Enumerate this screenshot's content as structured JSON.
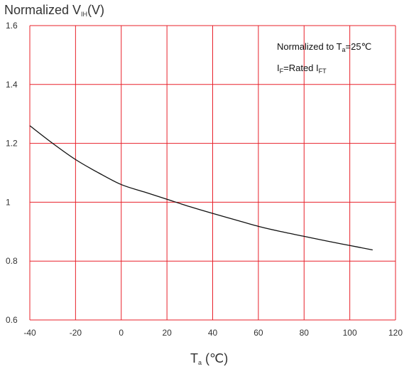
{
  "chart_data": {
    "type": "line",
    "title": "",
    "ylabel": {
      "main": "Normalized V",
      "sub": "IH",
      "suffix": "(V)"
    },
    "xlabel": {
      "main": "T",
      "sub": "a",
      "suffix": " (℃)"
    },
    "xlim": [
      -40,
      120
    ],
    "ylim": [
      0.6,
      1.6
    ],
    "xticks": [
      -40,
      -20,
      0,
      20,
      40,
      60,
      80,
      100,
      120
    ],
    "yticks": [
      0.6,
      0.8,
      1,
      1.2,
      1.4,
      1.6
    ],
    "xtick_labels": [
      "-40",
      "-20",
      "0",
      "20",
      "40",
      "60",
      "80",
      "100",
      "120"
    ],
    "ytick_labels": [
      "0.6",
      "0.8",
      "1",
      "1.2",
      "1.4",
      "1.6"
    ],
    "grid": true,
    "grid_color": "#e8202a",
    "line_color": "#111111",
    "annotations": [
      {
        "main": "Normalized to T",
        "sub": "a",
        "suffix": "=25℃"
      },
      {
        "main": "I",
        "sub": "F",
        "suffix": "=Rated I",
        "sub2": "FT"
      }
    ],
    "series": [
      {
        "x": [
          -40,
          -30,
          -20,
          -10,
          0,
          10,
          20,
          30,
          40,
          50,
          60,
          70,
          80,
          90,
          100,
          110
        ],
        "y": [
          1.26,
          1.2,
          1.145,
          1.1,
          1.06,
          1.035,
          1.01,
          0.985,
          0.962,
          0.94,
          0.918,
          0.9,
          0.884,
          0.868,
          0.853,
          0.838
        ]
      }
    ]
  }
}
